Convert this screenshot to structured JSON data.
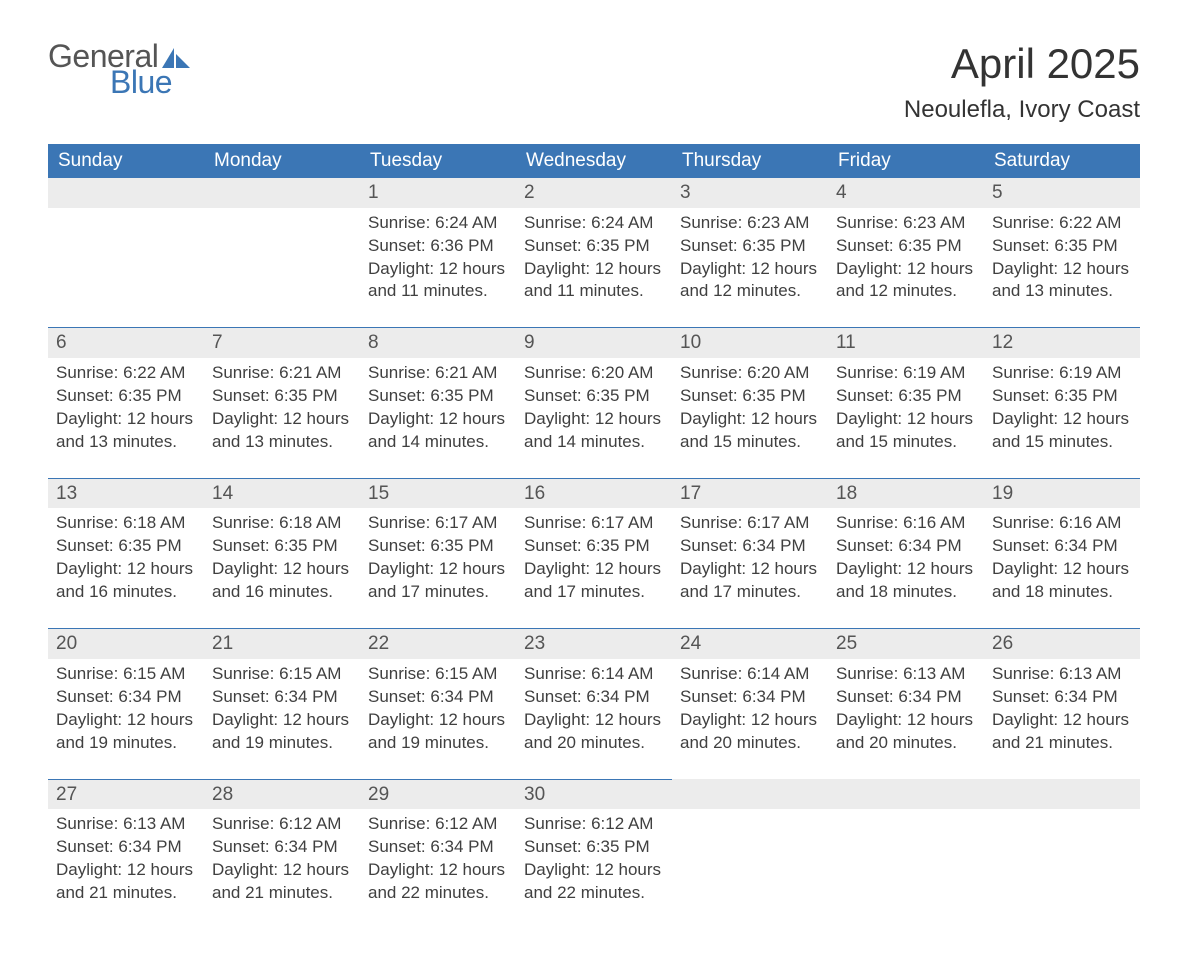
{
  "logo": {
    "word1": "General",
    "word2": "Blue",
    "color_general": "#555555",
    "color_blue": "#3b76b5"
  },
  "header": {
    "title": "April 2025",
    "location": "Neoulefla, Ivory Coast"
  },
  "calendar": {
    "type": "table",
    "day_header_bg": "#3b76b5",
    "day_header_fg": "#ffffff",
    "daynum_bg": "#ececec",
    "rule_color": "#3b76b5",
    "body_bg": "#ffffff",
    "text_color": "#404040",
    "header_fontsize": 19,
    "cell_fontsize": 17,
    "day_names": [
      "Sunday",
      "Monday",
      "Tuesday",
      "Wednesday",
      "Thursday",
      "Friday",
      "Saturday"
    ],
    "weeks": [
      [
        null,
        null,
        {
          "n": "1",
          "sr": "6:24 AM",
          "ss": "6:36 PM",
          "dl": "12 hours and 11 minutes."
        },
        {
          "n": "2",
          "sr": "6:24 AM",
          "ss": "6:35 PM",
          "dl": "12 hours and 11 minutes."
        },
        {
          "n": "3",
          "sr": "6:23 AM",
          "ss": "6:35 PM",
          "dl": "12 hours and 12 minutes."
        },
        {
          "n": "4",
          "sr": "6:23 AM",
          "ss": "6:35 PM",
          "dl": "12 hours and 12 minutes."
        },
        {
          "n": "5",
          "sr": "6:22 AM",
          "ss": "6:35 PM",
          "dl": "12 hours and 13 minutes."
        }
      ],
      [
        {
          "n": "6",
          "sr": "6:22 AM",
          "ss": "6:35 PM",
          "dl": "12 hours and 13 minutes."
        },
        {
          "n": "7",
          "sr": "6:21 AM",
          "ss": "6:35 PM",
          "dl": "12 hours and 13 minutes."
        },
        {
          "n": "8",
          "sr": "6:21 AM",
          "ss": "6:35 PM",
          "dl": "12 hours and 14 minutes."
        },
        {
          "n": "9",
          "sr": "6:20 AM",
          "ss": "6:35 PM",
          "dl": "12 hours and 14 minutes."
        },
        {
          "n": "10",
          "sr": "6:20 AM",
          "ss": "6:35 PM",
          "dl": "12 hours and 15 minutes."
        },
        {
          "n": "11",
          "sr": "6:19 AM",
          "ss": "6:35 PM",
          "dl": "12 hours and 15 minutes."
        },
        {
          "n": "12",
          "sr": "6:19 AM",
          "ss": "6:35 PM",
          "dl": "12 hours and 15 minutes."
        }
      ],
      [
        {
          "n": "13",
          "sr": "6:18 AM",
          "ss": "6:35 PM",
          "dl": "12 hours and 16 minutes."
        },
        {
          "n": "14",
          "sr": "6:18 AM",
          "ss": "6:35 PM",
          "dl": "12 hours and 16 minutes."
        },
        {
          "n": "15",
          "sr": "6:17 AM",
          "ss": "6:35 PM",
          "dl": "12 hours and 17 minutes."
        },
        {
          "n": "16",
          "sr": "6:17 AM",
          "ss": "6:35 PM",
          "dl": "12 hours and 17 minutes."
        },
        {
          "n": "17",
          "sr": "6:17 AM",
          "ss": "6:34 PM",
          "dl": "12 hours and 17 minutes."
        },
        {
          "n": "18",
          "sr": "6:16 AM",
          "ss": "6:34 PM",
          "dl": "12 hours and 18 minutes."
        },
        {
          "n": "19",
          "sr": "6:16 AM",
          "ss": "6:34 PM",
          "dl": "12 hours and 18 minutes."
        }
      ],
      [
        {
          "n": "20",
          "sr": "6:15 AM",
          "ss": "6:34 PM",
          "dl": "12 hours and 19 minutes."
        },
        {
          "n": "21",
          "sr": "6:15 AM",
          "ss": "6:34 PM",
          "dl": "12 hours and 19 minutes."
        },
        {
          "n": "22",
          "sr": "6:15 AM",
          "ss": "6:34 PM",
          "dl": "12 hours and 19 minutes."
        },
        {
          "n": "23",
          "sr": "6:14 AM",
          "ss": "6:34 PM",
          "dl": "12 hours and 20 minutes."
        },
        {
          "n": "24",
          "sr": "6:14 AM",
          "ss": "6:34 PM",
          "dl": "12 hours and 20 minutes."
        },
        {
          "n": "25",
          "sr": "6:13 AM",
          "ss": "6:34 PM",
          "dl": "12 hours and 20 minutes."
        },
        {
          "n": "26",
          "sr": "6:13 AM",
          "ss": "6:34 PM",
          "dl": "12 hours and 21 minutes."
        }
      ],
      [
        {
          "n": "27",
          "sr": "6:13 AM",
          "ss": "6:34 PM",
          "dl": "12 hours and 21 minutes."
        },
        {
          "n": "28",
          "sr": "6:12 AM",
          "ss": "6:34 PM",
          "dl": "12 hours and 21 minutes."
        },
        {
          "n": "29",
          "sr": "6:12 AM",
          "ss": "6:34 PM",
          "dl": "12 hours and 22 minutes."
        },
        {
          "n": "30",
          "sr": "6:12 AM",
          "ss": "6:35 PM",
          "dl": "12 hours and 22 minutes."
        },
        null,
        null,
        null
      ]
    ],
    "labels": {
      "sunrise": "Sunrise:",
      "sunset": "Sunset:",
      "daylight": "Daylight:"
    }
  }
}
